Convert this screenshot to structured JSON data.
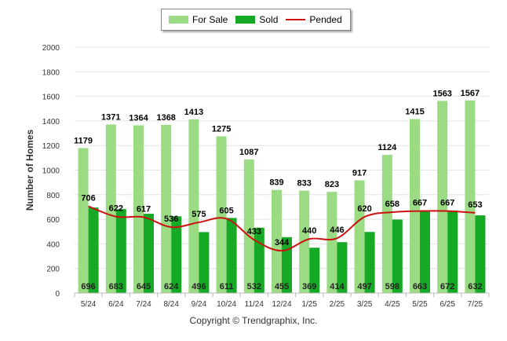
{
  "chart_data": {
    "type": "bar",
    "ylabel": "Number of Homes",
    "ylim": [
      0,
      2000
    ],
    "yticks": [
      "0",
      "200",
      "400",
      "600",
      "800",
      "1000",
      "1200",
      "1400",
      "1600",
      "1800",
      "2000"
    ],
    "ytick_values": [
      0,
      200,
      400,
      600,
      800,
      1000,
      1200,
      1400,
      1600,
      1800,
      2000
    ],
    "categories": [
      "5/24",
      "6/24",
      "7/24",
      "8/24",
      "9/24",
      "10/24",
      "11/24",
      "12/24",
      "1/25",
      "2/25",
      "3/25",
      "4/25",
      "5/25",
      "6/25",
      "7/25"
    ],
    "series": [
      {
        "name": "For Sale",
        "type": "bar",
        "color": "#9bdb84",
        "values": [
          1179,
          1371,
          1364,
          1368,
          1413,
          1275,
          1087,
          839,
          833,
          823,
          917,
          1124,
          1415,
          1563,
          1567
        ]
      },
      {
        "name": "Sold",
        "type": "bar",
        "color": "#16a925",
        "values": [
          696,
          683,
          645,
          624,
          496,
          611,
          532,
          455,
          369,
          414,
          497,
          598,
          663,
          672,
          632
        ]
      },
      {
        "name": "Pended",
        "type": "line",
        "color": "#cc1111",
        "values": [
          706,
          622,
          617,
          536,
          575,
          605,
          433,
          344,
          440,
          446,
          620,
          658,
          667,
          667,
          653
        ]
      }
    ],
    "legend_position": "top-center",
    "grid": true
  },
  "legend": {
    "for_sale": "For Sale",
    "sold": "Sold",
    "pended": "Pended"
  },
  "footer": {
    "copyright": "Copyright © Trendgraphix, Inc."
  }
}
